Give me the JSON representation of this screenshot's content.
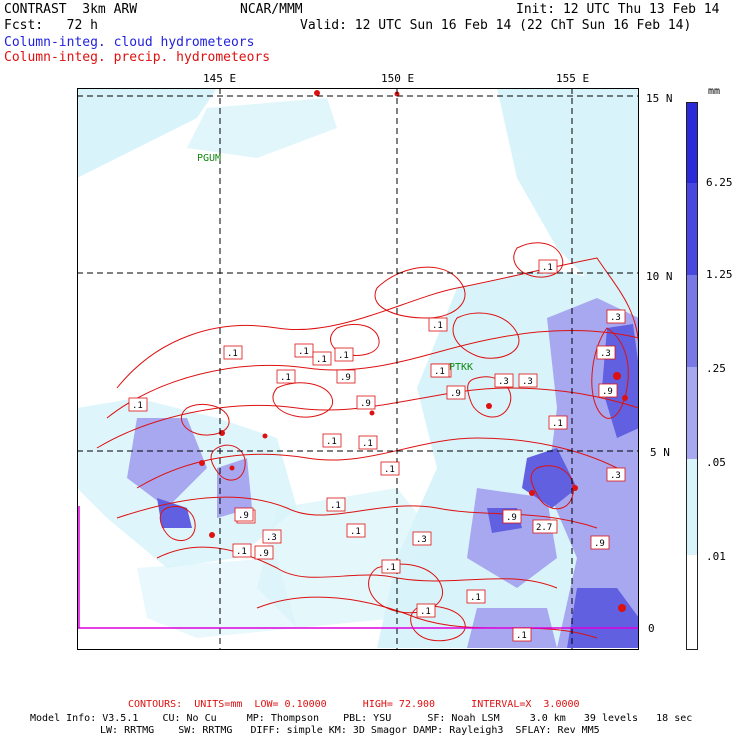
{
  "header": {
    "left1": "CONTRAST  3km ARW",
    "mid1": "NCAR/MMM",
    "right1": "Init: 12 UTC Thu 13 Feb 14",
    "left2": "Fcst:   72 h",
    "right2": "Valid: 12 UTC Sun 16 Feb 14 (22 ChT Sun 16 Feb 14)",
    "field_cloud": "Column-integ. cloud hydrometeors",
    "field_precip": "Column-integ. precip. hydrometeors"
  },
  "axes": {
    "lon_labels": [
      "145 E",
      "150 E",
      "155 E"
    ],
    "lat_labels": [
      "15 N",
      "10 N",
      "5 N",
      "0"
    ]
  },
  "stations": [
    "PGUM",
    "PTKK"
  ],
  "contour_labels": [
    ".1",
    ".3",
    ".1",
    ".1",
    ".1",
    ".1",
    ".1",
    ".1",
    ".9",
    ".9",
    ".1",
    ".3",
    ".9",
    ".3",
    ".1",
    ".1",
    ".9",
    ".9",
    ".1",
    ".1",
    ".1",
    ".1",
    ".1",
    ".1",
    ".3",
    ".9",
    ".1",
    ".9",
    ".1",
    ".3",
    ".9",
    "2.7",
    ".9",
    ".1",
    ".3",
    ".1",
    ".1",
    ".3"
  ],
  "legend": {
    "unit": "mm",
    "levels": [
      "6.25",
      "1.25",
      ".25",
      ".05",
      ".01"
    ],
    "colors": [
      "#2a2ad8",
      "#4848e0",
      "#7878e6",
      "#a8a8f0",
      "#d8f4fa",
      "#ffffff"
    ]
  },
  "footer": {
    "contours": "CONTOURS:  UNITS=mm  LOW= 0.10000      HIGH= 72.900      INTERVAL=X  3.0000",
    "model1": "Model Info: V3.5.1    CU: No Cu     MP: Thompson    PBL: YSU      SF: Noah LSM     3.0 km   39 levels   18 sec",
    "model2": "LW: RRTMG    SW: RRTMG   DIFF: simple KM: 3D Smagor DAMP: Rayleigh3  SFLAY: Rev MM5"
  }
}
